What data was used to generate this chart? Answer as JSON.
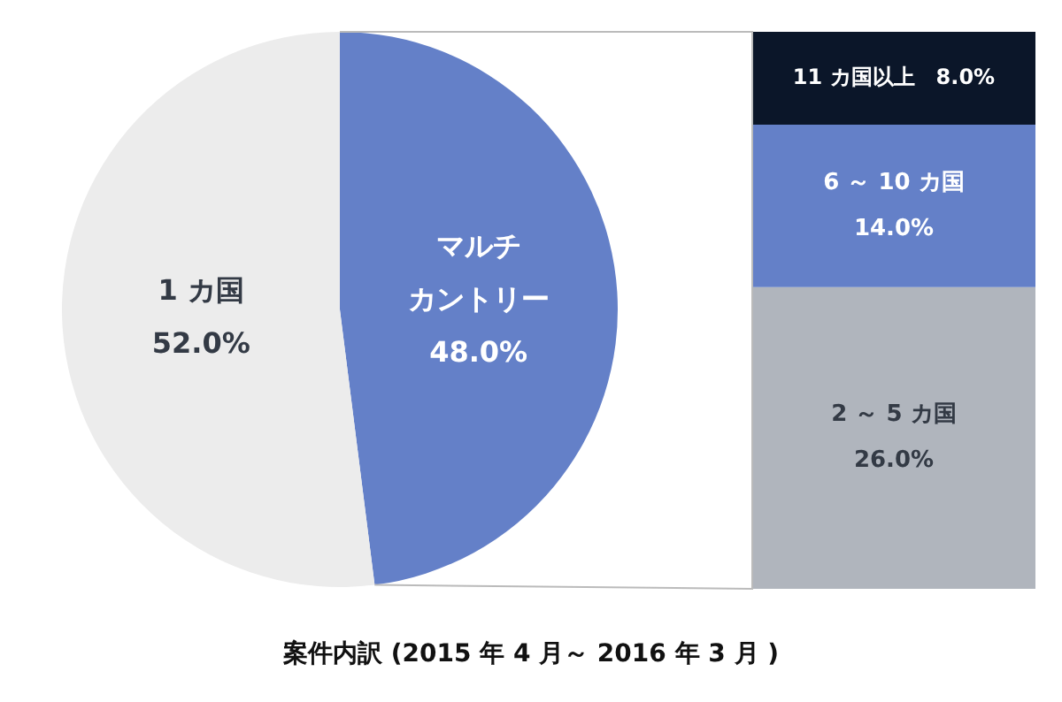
{
  "chart_data": [
    {
      "type": "pie",
      "title": "案件内訳 (2015 年 4 月～ 2016 年 3 月 )",
      "categories": [
        "マルチカントリー",
        "1 カ国"
      ],
      "values": [
        48,
        52
      ],
      "colors": [
        "#6480c8",
        "#ececec"
      ],
      "value_labels": [
        "48.0%",
        "52.0%"
      ]
    },
    {
      "type": "bar",
      "stacked": true,
      "categories": [
        null
      ],
      "series": [
        {
          "name": "2 ～ 5 カ国",
          "color": "#b0b5bd",
          "values": [
            26
          ],
          "value_labels": [
            "26.0%"
          ]
        },
        {
          "name": "6 ～ 10 カ国",
          "color": "#6480c8",
          "values": [
            14
          ],
          "value_labels": [
            "14.0%"
          ]
        },
        {
          "name": "11 カ国以上",
          "color": "#0b1629",
          "values": [
            8
          ],
          "value_labels": [
            "8.0%"
          ]
        }
      ]
    }
  ]
}
